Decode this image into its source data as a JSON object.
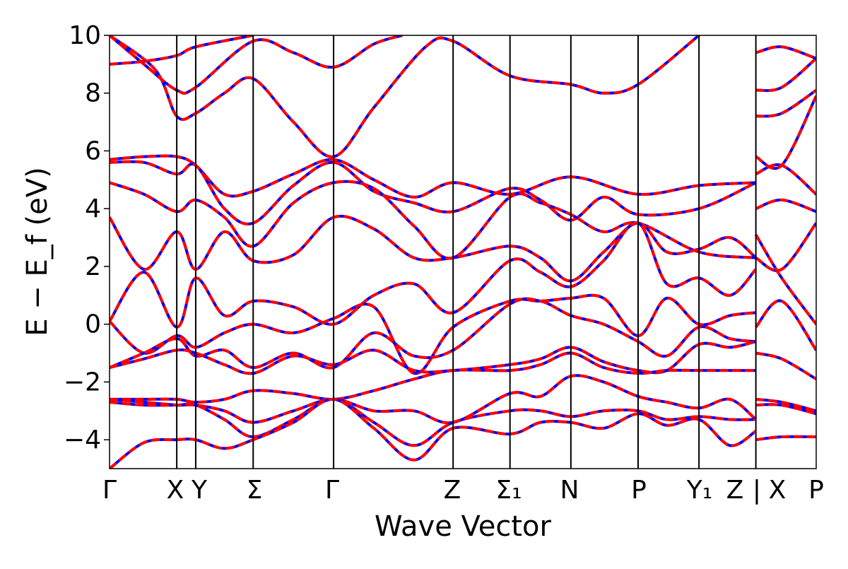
{
  "chart_data": {
    "type": "line",
    "title": "",
    "xlabel": "Wave Vector",
    "ylabel": "E − E_f (eV)",
    "ylim": [
      -5,
      10
    ],
    "yticks": [
      {
        "value": -4,
        "label": "−4"
      },
      {
        "value": -2,
        "label": "−2"
      },
      {
        "value": 0,
        "label": "0"
      },
      {
        "value": 2,
        "label": "2"
      },
      {
        "value": 4,
        "label": "4"
      },
      {
        "value": 6,
        "label": "6"
      },
      {
        "value": 8,
        "label": "8"
      },
      {
        "value": 10,
        "label": "10"
      }
    ],
    "xlim": [
      0,
      10.7
    ],
    "kpoints": [
      {
        "x": 0.0,
        "label": "Γ"
      },
      {
        "x": 1.17,
        "label": "X"
      },
      {
        "x": 1.5,
        "label": "Y"
      },
      {
        "x": 2.5,
        "label": "Σ"
      },
      {
        "x": 3.9,
        "label": "Γ"
      },
      {
        "x": 5.98,
        "label": "Z"
      },
      {
        "x": 6.97,
        "label": "Σ₁"
      },
      {
        "x": 8.03,
        "label": "N"
      },
      {
        "x": 9.2,
        "label": "P"
      },
      {
        "x": 10.26,
        "label": "Y₁"
      },
      {
        "x": 11.25,
        "label": "Z"
      },
      {
        "x": 11.25,
        "label": "|"
      },
      {
        "x": 11.25,
        "label": "X"
      },
      {
        "x": 12.3,
        "label": "P"
      }
    ],
    "grid": false,
    "legend": "none",
    "series_colors": {
      "calc_a": "#0000ff",
      "calc_b": "#ff0000"
    },
    "bands": [
      [
        [
          0,
          9.0
        ],
        [
          0.6,
          9.1
        ],
        [
          1.17,
          9.3
        ],
        [
          1.5,
          9.6
        ],
        [
          2.5,
          10.0
        ]
      ],
      [
        [
          0,
          10.0
        ],
        [
          0.6,
          9.0
        ],
        [
          1.17,
          8.1
        ],
        [
          1.5,
          8.2
        ],
        [
          2.5,
          9.8
        ],
        [
          3.2,
          9.4
        ],
        [
          3.9,
          8.9
        ],
        [
          4.6,
          9.7
        ],
        [
          5.1,
          10.0
        ]
      ],
      [
        [
          0,
          10.0
        ],
        [
          0.8,
          8.8
        ],
        [
          1.17,
          7.2
        ],
        [
          1.5,
          7.3
        ],
        [
          2.0,
          8.0
        ],
        [
          2.5,
          8.5
        ],
        [
          3.2,
          7.0
        ],
        [
          3.9,
          5.8
        ],
        [
          4.6,
          7.5
        ],
        [
          5.5,
          9.6
        ],
        [
          5.98,
          9.8
        ],
        [
          6.97,
          8.6
        ],
        [
          8.03,
          8.3
        ],
        [
          8.6,
          8.0
        ],
        [
          9.2,
          8.3
        ],
        [
          10.26,
          10.0
        ]
      ],
      [
        [
          0,
          5.7
        ],
        [
          0.6,
          5.8
        ],
        [
          1.17,
          5.8
        ],
        [
          1.5,
          5.5
        ],
        [
          2.0,
          4.5
        ],
        [
          2.5,
          4.6
        ],
        [
          3.2,
          5.2
        ],
        [
          3.9,
          5.7
        ],
        [
          4.6,
          5.0
        ],
        [
          5.3,
          4.4
        ],
        [
          5.98,
          4.9
        ],
        [
          6.97,
          4.5
        ],
        [
          8.03,
          5.1
        ],
        [
          9.2,
          4.5
        ],
        [
          10.26,
          4.8
        ],
        [
          11.25,
          4.9
        ]
      ],
      [
        [
          0,
          5.6
        ],
        [
          0.6,
          5.6
        ],
        [
          1.17,
          5.2
        ],
        [
          1.5,
          5.5
        ],
        [
          2.0,
          4.0
        ],
        [
          2.5,
          3.5
        ],
        [
          3.2,
          4.8
        ],
        [
          3.9,
          5.6
        ],
        [
          4.6,
          4.6
        ],
        [
          5.3,
          4.2
        ],
        [
          5.98,
          3.9
        ],
        [
          6.97,
          4.7
        ],
        [
          7.5,
          4.3
        ],
        [
          8.03,
          3.6
        ],
        [
          8.6,
          4.4
        ],
        [
          9.2,
          3.8
        ],
        [
          10.26,
          4.0
        ],
        [
          11.25,
          4.9
        ]
      ],
      [
        [
          0,
          4.9
        ],
        [
          0.6,
          4.5
        ],
        [
          1.17,
          3.9
        ],
        [
          1.5,
          4.3
        ],
        [
          2.0,
          3.7
        ],
        [
          2.5,
          2.7
        ],
        [
          3.2,
          4.2
        ],
        [
          3.9,
          4.9
        ],
        [
          4.6,
          4.7
        ],
        [
          5.3,
          3.4
        ],
        [
          5.98,
          2.3
        ],
        [
          6.97,
          4.4
        ],
        [
          7.5,
          4.2
        ],
        [
          8.03,
          3.8
        ],
        [
          8.6,
          3.2
        ],
        [
          9.2,
          3.5
        ],
        [
          10.26,
          2.5
        ],
        [
          11.25,
          2.3
        ]
      ],
      [
        [
          0,
          3.7
        ],
        [
          0.6,
          1.9
        ],
        [
          1.17,
          3.2
        ],
        [
          1.5,
          1.9
        ],
        [
          2.0,
          3.2
        ],
        [
          2.5,
          2.2
        ],
        [
          3.2,
          2.4
        ],
        [
          3.9,
          3.7
        ],
        [
          4.6,
          3.3
        ],
        [
          5.3,
          2.3
        ],
        [
          5.98,
          2.3
        ],
        [
          6.97,
          2.7
        ],
        [
          7.5,
          2.3
        ],
        [
          8.03,
          1.5
        ],
        [
          8.6,
          2.5
        ],
        [
          9.2,
          3.5
        ],
        [
          9.7,
          2.5
        ],
        [
          10.26,
          2.6
        ],
        [
          10.8,
          3.0
        ],
        [
          11.25,
          2.3
        ]
      ],
      [
        [
          0,
          0.1
        ],
        [
          0.6,
          1.8
        ],
        [
          1.17,
          -0.1
        ],
        [
          1.5,
          1.6
        ],
        [
          2.0,
          0.3
        ],
        [
          2.5,
          0.8
        ],
        [
          3.2,
          0.6
        ],
        [
          3.9,
          0.0
        ],
        [
          4.6,
          1.0
        ],
        [
          5.3,
          1.4
        ],
        [
          5.98,
          0.4
        ],
        [
          6.97,
          2.2
        ],
        [
          7.5,
          1.8
        ],
        [
          8.03,
          1.3
        ],
        [
          8.6,
          2.2
        ],
        [
          9.2,
          3.5
        ],
        [
          9.7,
          1.4
        ],
        [
          10.26,
          1.6
        ],
        [
          10.8,
          1.0
        ],
        [
          11.25,
          1.9
        ]
      ],
      [
        [
          0,
          0.1
        ],
        [
          0.6,
          -1.0
        ],
        [
          1.17,
          -0.4
        ],
        [
          1.5,
          -0.8
        ],
        [
          2.0,
          -0.3
        ],
        [
          2.5,
          0.0
        ],
        [
          3.2,
          -0.3
        ],
        [
          3.9,
          0.2
        ],
        [
          4.6,
          0.6
        ],
        [
          5.3,
          -1.7
        ],
        [
          5.98,
          -0.1
        ],
        [
          6.97,
          0.8
        ],
        [
          7.5,
          0.8
        ],
        [
          8.03,
          0.9
        ],
        [
          8.6,
          0.9
        ],
        [
          9.2,
          -0.4
        ],
        [
          9.7,
          0.9
        ],
        [
          10.26,
          0.0
        ],
        [
          10.8,
          0.3
        ],
        [
          11.25,
          0.4
        ]
      ],
      [
        [
          0,
          -1.5
        ],
        [
          0.6,
          -1.0
        ],
        [
          1.17,
          -0.5
        ],
        [
          1.5,
          -1.1
        ],
        [
          2.0,
          -0.9
        ],
        [
          2.5,
          -1.5
        ],
        [
          3.2,
          -1.0
        ],
        [
          3.9,
          -1.5
        ],
        [
          4.6,
          -0.3
        ],
        [
          5.3,
          -1.1
        ],
        [
          5.98,
          -0.9
        ],
        [
          6.97,
          0.7
        ],
        [
          7.5,
          0.8
        ],
        [
          8.03,
          0.3
        ],
        [
          8.6,
          0.0
        ],
        [
          9.2,
          -0.6
        ],
        [
          9.7,
          -1.1
        ],
        [
          10.26,
          -0.1
        ],
        [
          10.8,
          -0.5
        ],
        [
          11.25,
          -0.6
        ]
      ],
      [
        [
          0,
          -1.5
        ],
        [
          0.6,
          -1.2
        ],
        [
          1.17,
          -0.9
        ],
        [
          1.5,
          -1.0
        ],
        [
          2.0,
          -1.4
        ],
        [
          2.5,
          -1.7
        ],
        [
          3.2,
          -1.1
        ],
        [
          3.9,
          -1.4
        ],
        [
          4.6,
          -0.9
        ],
        [
          5.3,
          -1.6
        ],
        [
          5.98,
          -1.6
        ],
        [
          6.97,
          -1.4
        ],
        [
          7.5,
          -1.2
        ],
        [
          8.03,
          -0.8
        ],
        [
          8.6,
          -1.3
        ],
        [
          9.2,
          -1.6
        ],
        [
          9.7,
          -1.6
        ],
        [
          10.26,
          -0.7
        ],
        [
          10.8,
          -0.8
        ],
        [
          11.25,
          -0.6
        ]
      ],
      [
        [
          0,
          -2.6
        ],
        [
          0.6,
          -2.6
        ],
        [
          1.17,
          -2.6
        ],
        [
          1.5,
          -2.7
        ],
        [
          2.0,
          -2.6
        ],
        [
          2.5,
          -2.3
        ],
        [
          3.2,
          -2.4
        ],
        [
          3.9,
          -2.6
        ],
        [
          4.6,
          -2.3
        ],
        [
          5.3,
          -1.9
        ],
        [
          5.98,
          -1.6
        ],
        [
          6.97,
          -1.6
        ],
        [
          7.5,
          -1.4
        ],
        [
          8.03,
          -1.0
        ],
        [
          8.6,
          -1.5
        ],
        [
          9.2,
          -1.7
        ],
        [
          9.7,
          -1.6
        ],
        [
          10.26,
          -1.6
        ],
        [
          10.8,
          -1.6
        ],
        [
          11.25,
          -1.6
        ]
      ],
      [
        [
          0,
          -2.6
        ],
        [
          0.6,
          -2.7
        ],
        [
          1.17,
          -2.8
        ],
        [
          1.5,
          -2.8
        ],
        [
          2.0,
          -3.0
        ],
        [
          2.5,
          -3.4
        ],
        [
          3.2,
          -3.0
        ],
        [
          3.9,
          -2.6
        ],
        [
          4.6,
          -3.0
        ],
        [
          5.3,
          -3.0
        ],
        [
          5.98,
          -3.4
        ],
        [
          6.97,
          -2.4
        ],
        [
          7.5,
          -2.5
        ],
        [
          8.03,
          -1.8
        ],
        [
          8.6,
          -2.0
        ],
        [
          9.2,
          -2.5
        ],
        [
          9.7,
          -2.7
        ],
        [
          10.26,
          -2.9
        ],
        [
          10.8,
          -2.6
        ],
        [
          11.25,
          -3.3
        ]
      ],
      [
        [
          0,
          -2.7
        ],
        [
          0.6,
          -2.8
        ],
        [
          1.17,
          -2.8
        ],
        [
          1.5,
          -2.8
        ],
        [
          2.0,
          -3.3
        ],
        [
          2.5,
          -3.9
        ],
        [
          3.2,
          -3.3
        ],
        [
          3.9,
          -2.6
        ],
        [
          4.6,
          -3.4
        ],
        [
          5.3,
          -4.2
        ],
        [
          5.98,
          -3.4
        ],
        [
          6.97,
          -3.0
        ],
        [
          7.5,
          -3.0
        ],
        [
          8.03,
          -3.2
        ],
        [
          8.6,
          -3.0
        ],
        [
          9.2,
          -3.0
        ],
        [
          9.7,
          -3.3
        ],
        [
          10.26,
          -3.2
        ],
        [
          10.8,
          -3.3
        ],
        [
          11.25,
          -3.3
        ]
      ],
      [
        [
          0,
          -5.0
        ],
        [
          0.6,
          -4.1
        ],
        [
          1.17,
          -4.0
        ],
        [
          1.5,
          -4.0
        ],
        [
          2.0,
          -4.3
        ],
        [
          2.5,
          -4.0
        ],
        [
          3.2,
          -3.4
        ],
        [
          3.9,
          -2.6
        ],
        [
          4.6,
          -3.6
        ],
        [
          5.3,
          -4.7
        ],
        [
          5.98,
          -3.6
        ],
        [
          6.97,
          -3.8
        ],
        [
          7.5,
          -3.4
        ],
        [
          8.03,
          -3.4
        ],
        [
          8.6,
          -3.6
        ],
        [
          9.2,
          -3.1
        ],
        [
          9.7,
          -3.5
        ],
        [
          10.26,
          -3.3
        ],
        [
          10.8,
          -4.2
        ],
        [
          11.25,
          -3.7
        ]
      ],
      [
        [
          11.25,
          -0.1
        ],
        [
          11.7,
          0.8
        ],
        [
          12.3,
          -0.9
        ]
      ],
      [
        [
          11.25,
          -1.0
        ],
        [
          11.7,
          -1.2
        ],
        [
          12.3,
          -1.9
        ]
      ],
      [
        [
          11.25,
          -2.6
        ],
        [
          11.7,
          -2.7
        ],
        [
          12.3,
          -3.0
        ]
      ],
      [
        [
          11.25,
          -2.8
        ],
        [
          11.7,
          -2.8
        ],
        [
          12.3,
          -3.1
        ]
      ],
      [
        [
          11.25,
          -4.0
        ],
        [
          11.7,
          -3.9
        ],
        [
          12.3,
          -3.9
        ]
      ],
      [
        [
          11.25,
          2.3
        ],
        [
          11.7,
          1.9
        ],
        [
          12.3,
          3.5
        ]
      ],
      [
        [
          11.25,
          3.1
        ],
        [
          11.7,
          1.6
        ],
        [
          12.3,
          0.0
        ]
      ],
      [
        [
          11.25,
          4.0
        ],
        [
          11.7,
          4.3
        ],
        [
          12.3,
          3.9
        ]
      ],
      [
        [
          11.25,
          5.2
        ],
        [
          11.7,
          5.5
        ],
        [
          12.3,
          4.5
        ]
      ],
      [
        [
          11.25,
          5.8
        ],
        [
          11.7,
          5.5
        ],
        [
          12.3,
          7.9
        ]
      ],
      [
        [
          11.25,
          7.2
        ],
        [
          11.7,
          7.3
        ],
        [
          12.3,
          8.1
        ]
      ],
      [
        [
          11.25,
          8.1
        ],
        [
          11.7,
          8.2
        ],
        [
          12.3,
          9.2
        ]
      ],
      [
        [
          11.25,
          9.4
        ],
        [
          11.7,
          9.6
        ],
        [
          12.3,
          9.2
        ]
      ]
    ]
  }
}
